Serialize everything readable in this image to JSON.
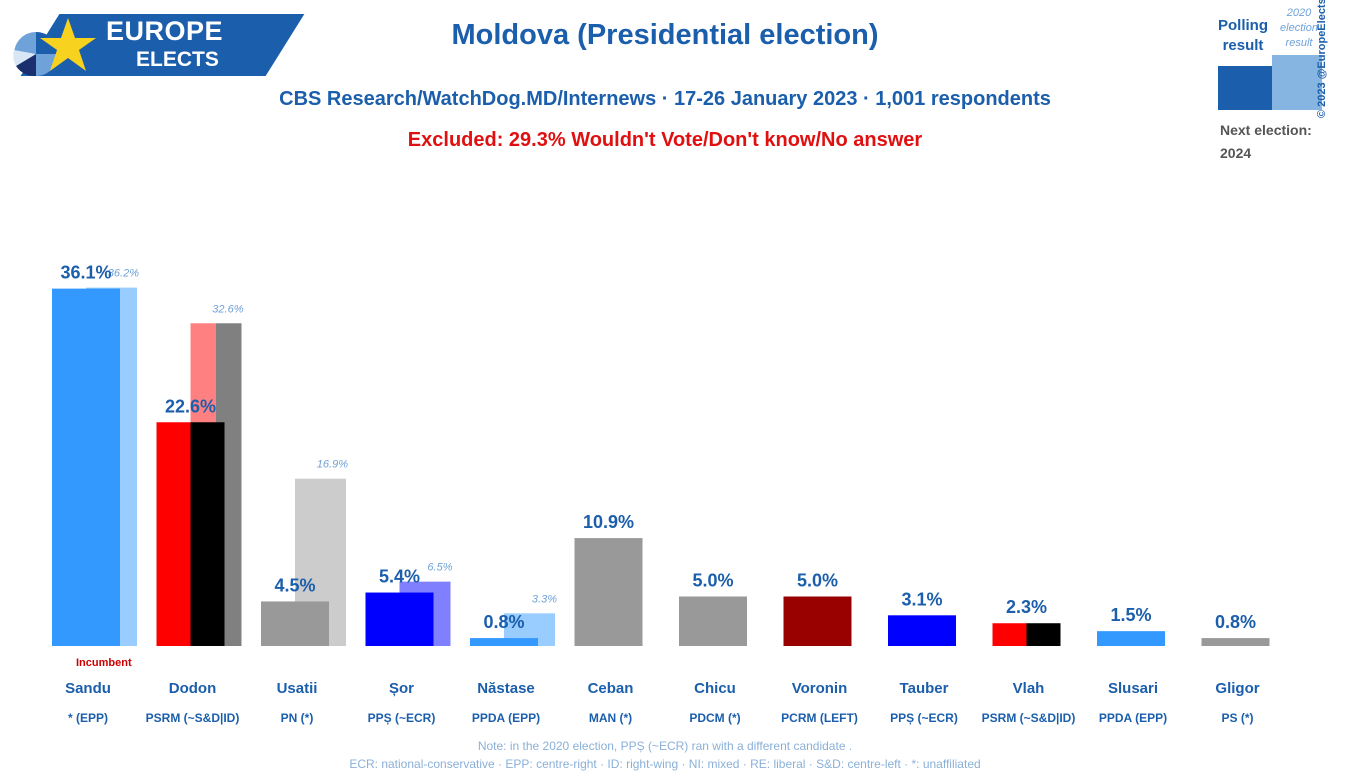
{
  "logo": {
    "line1": "EUROPE",
    "line2": "ELECTS"
  },
  "title": "Moldova (Presidential election)",
  "subtitle": "CBS Research/WatchDog.MD/Internews · 17-26 January 2023 · 1,001 respondents",
  "excluded": "Excluded: 29.3% Wouldn't Vote/Don't know/No answer",
  "legend": {
    "polling_line1": "Polling",
    "polling_line2": "result",
    "election_line1": "2020",
    "election_line2": "election",
    "election_line3": "result",
    "next_label": "Next election:",
    "next_year": "2024",
    "polling_color": "#1b5eab",
    "election_color": "#86b5e2"
  },
  "copyright": "© 2023 @EuropeElects",
  "incumbent_label": "Incumbent",
  "notes": {
    "line1": "Note: in the 2020 election, PPȘ (~ECR) ran with a different candidate .",
    "line2": "ECR: national-conservative · EPP: centre-right · ID: right-wing · NI: mixed · RE: liberal · S&D: centre-left · *: unaffiliated"
  },
  "chart_data": {
    "type": "bar",
    "ylim": [
      0,
      40
    ],
    "categories": [
      "Sandu",
      "Dodon",
      "Usatii",
      "Șor",
      "Năstase",
      "Ceban",
      "Chicu",
      "Voronin",
      "Tauber",
      "Vlah",
      "Slusari",
      "Gligor"
    ],
    "parties": [
      "* (EPP)",
      "PSRM (~S&D|ID)",
      "PN (*)",
      "PPȘ (~ECR)",
      "PPDA (EPP)",
      "MAN (*)",
      "PDCM (*)",
      "PCRM (LEFT)",
      "PPȘ (~ECR)",
      "PSRM (~S&D|ID)",
      "PPDA (EPP)",
      "PS (*)"
    ],
    "series": [
      {
        "name": "Polling result",
        "values": [
          36.1,
          22.6,
          4.5,
          5.4,
          0.8,
          10.9,
          5.0,
          5.0,
          3.1,
          2.3,
          1.5,
          0.8
        ],
        "labels": [
          "36.1%",
          "22.6%",
          "4.5%",
          "5.4%",
          "0.8%",
          "10.9%",
          "5.0%",
          "5.0%",
          "3.1%",
          "2.3%",
          "1.5%",
          "0.8%"
        ],
        "colors": [
          [
            "#3399ff"
          ],
          [
            "#ff0000",
            "#000000"
          ],
          [
            "#999999"
          ],
          [
            "#0000ff"
          ],
          [
            "#3399ff"
          ],
          [
            "#999999"
          ],
          [
            "#999999"
          ],
          [
            "#990000"
          ],
          [
            "#0000ff"
          ],
          [
            "#ff0000",
            "#000000"
          ],
          [
            "#3399ff"
          ],
          [
            "#999999"
          ]
        ]
      },
      {
        "name": "2020 election result",
        "values": [
          36.2,
          32.6,
          16.9,
          6.5,
          3.3,
          null,
          null,
          null,
          null,
          null,
          null,
          null
        ],
        "labels": [
          "36.2%",
          "32.6%",
          "16.9%",
          "6.5%",
          "3.3%",
          "",
          "",
          "",
          "",
          "",
          "",
          ""
        ],
        "colors": [
          [
            "#99ccff"
          ],
          [
            "#ff8080",
            "#808080"
          ],
          [
            "#cccccc"
          ],
          [
            "#8080ff"
          ],
          [
            "#99ccff"
          ],
          [],
          [],
          [],
          [],
          [],
          [],
          []
        ]
      }
    ]
  }
}
